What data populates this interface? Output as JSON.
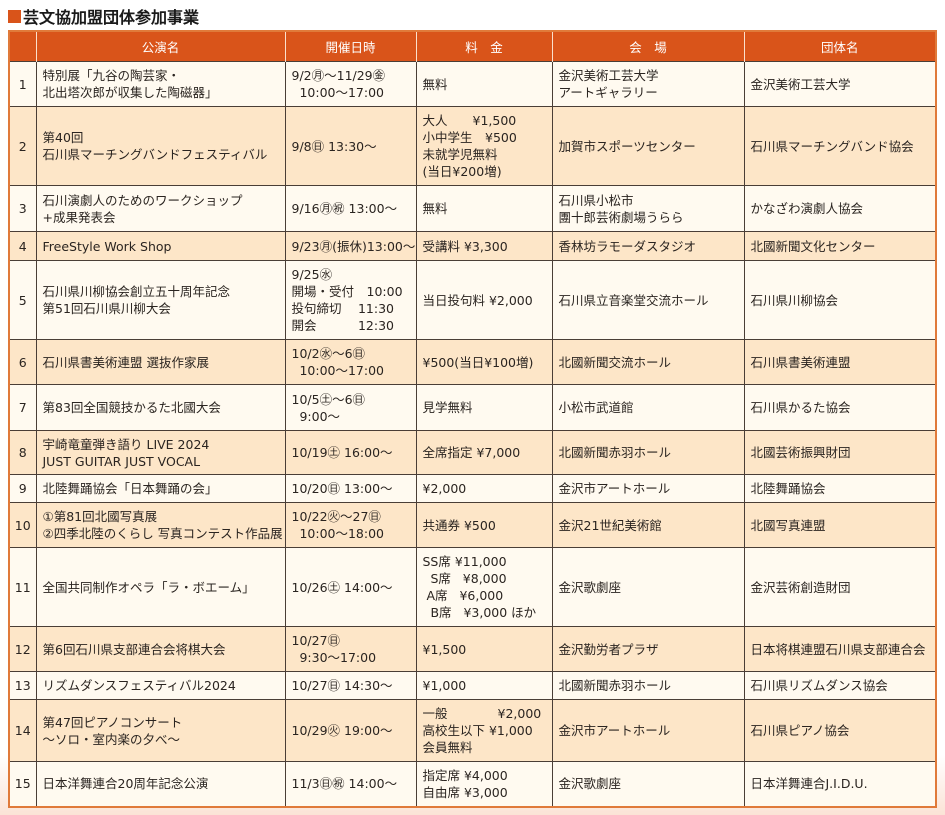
{
  "title": "芸文協加盟団体参加事業",
  "colors": {
    "header_bg": "#d9541a",
    "row_odd": "#fffaf0",
    "row_even": "#fde6c8"
  },
  "headers": [
    "",
    "公演名",
    "開催日時",
    "料　金",
    "会　場",
    "団体名"
  ],
  "rows": [
    {
      "no": "1",
      "name": "特別展「九谷の陶芸家・\n北出塔次郎が収集した陶磁器」",
      "date": "9/2㊊～11/29㊎\n  10:00～17:00",
      "fee": "無料",
      "venue": "金沢美術工芸大学\nアートギャラリー",
      "org": "金沢美術工芸大学"
    },
    {
      "no": "2",
      "name": "第40回\n石川県マーチングバンドフェスティバル",
      "date": "9/8㊐ 13:30～",
      "fee": "大人　　¥1,500\n小中学生　¥500\n未就学児無料\n(当日¥200増)",
      "venue": "加賀市スポーツセンター",
      "org": "石川県マーチングバンド協会"
    },
    {
      "no": "3",
      "name": "石川演劇人のためのワークショップ\n+成果発表会",
      "date": "9/16㊊㊗ 13:00～",
      "fee": "無料",
      "venue": "石川県小松市\n團十郎芸術劇場うらら",
      "org": "かなざわ演劇人協会"
    },
    {
      "no": "4",
      "name": "FreeStyle Work Shop",
      "date": "9/23㊊(振休)13:00～",
      "fee": "受講料 ¥3,300",
      "venue": "香林坊ラモーダスタジオ",
      "org": "北國新聞文化センター"
    },
    {
      "no": "5",
      "name": "石川県川柳協会創立五十周年記念\n第51回石川県川柳大会",
      "date": "9/25㊌\n開場・受付　10:00\n投句締切　 11:30\n開会　　　 12:30",
      "fee": "当日投句料 ¥2,000",
      "venue": "石川県立音楽堂交流ホール",
      "org": "石川県川柳協会"
    },
    {
      "no": "6",
      "name": "石川県書美術連盟 選抜作家展",
      "date": "10/2㊌～6㊐\n  10:00～17:00",
      "fee": "¥500(当日¥100増)",
      "venue": "北國新聞交流ホール",
      "org": "石川県書美術連盟"
    },
    {
      "no": "7",
      "name": "第83回全国競技かるた北國大会",
      "date": "10/5㊏～6㊐\n  9:00～",
      "fee": "見学無料",
      "venue": "小松市武道館",
      "org": "石川県かるた協会"
    },
    {
      "no": "8",
      "name": "宇崎竜童弾き語り LIVE 2024\nJUST GUITAR JUST VOCAL",
      "date": "10/19㊏ 16:00～",
      "fee": "全席指定 ¥7,000",
      "venue": "北國新聞赤羽ホール",
      "org": "北國芸術振興財団"
    },
    {
      "no": "9",
      "name": "北陸舞踊協会「日本舞踊の会」",
      "date": "10/20㊐ 13:00～",
      "fee": "¥2,000",
      "venue": "金沢市アートホール",
      "org": "北陸舞踊協会"
    },
    {
      "no": "10",
      "name": "①第81回北國写真展\n②四季北陸のくらし 写真コンテスト作品展",
      "date": "10/22㊋～27㊐\n  10:00～18:00",
      "fee": "共通券 ¥500",
      "venue": "金沢21世紀美術館",
      "org": "北國写真連盟"
    },
    {
      "no": "11",
      "name": "全国共同制作オペラ「ラ・ボエーム」",
      "date": "10/26㊏ 14:00～",
      "fee": "SS席 ¥11,000\n  S席   ¥8,000\n A席   ¥6,000\n  B席   ¥3,000 ほか",
      "venue": "金沢歌劇座",
      "org": "金沢芸術創造財団"
    },
    {
      "no": "12",
      "name": "第6回石川県支部連合会将棋大会",
      "date": "10/27㊐\n  9:30～17:00",
      "fee": "¥1,500",
      "venue": "金沢勤労者プラザ",
      "org": "日本将棋連盟石川県支部連合会"
    },
    {
      "no": "13",
      "name": "リズムダンスフェスティバル2024",
      "date": "10/27㊐ 14:30～",
      "fee": "¥1,000",
      "venue": "北國新聞赤羽ホール",
      "org": "石川県リズムダンス協会"
    },
    {
      "no": "14",
      "name": "第47回ピアノコンサート\n～ソロ・室内楽の夕べ～",
      "date": "10/29㊋ 19:00～",
      "fee": "一般　　　　¥2,000\n高校生以下 ¥1,000\n会員無料",
      "venue": "金沢市アートホール",
      "org": "石川県ピアノ協会"
    },
    {
      "no": "15",
      "name": "日本洋舞連合20周年記念公演",
      "date": "11/3㊐㊗ 14:00～",
      "fee": "指定席 ¥4,000\n自由席 ¥3,000",
      "venue": "金沢歌劇座",
      "org": "日本洋舞連合J.I.D.U."
    }
  ]
}
